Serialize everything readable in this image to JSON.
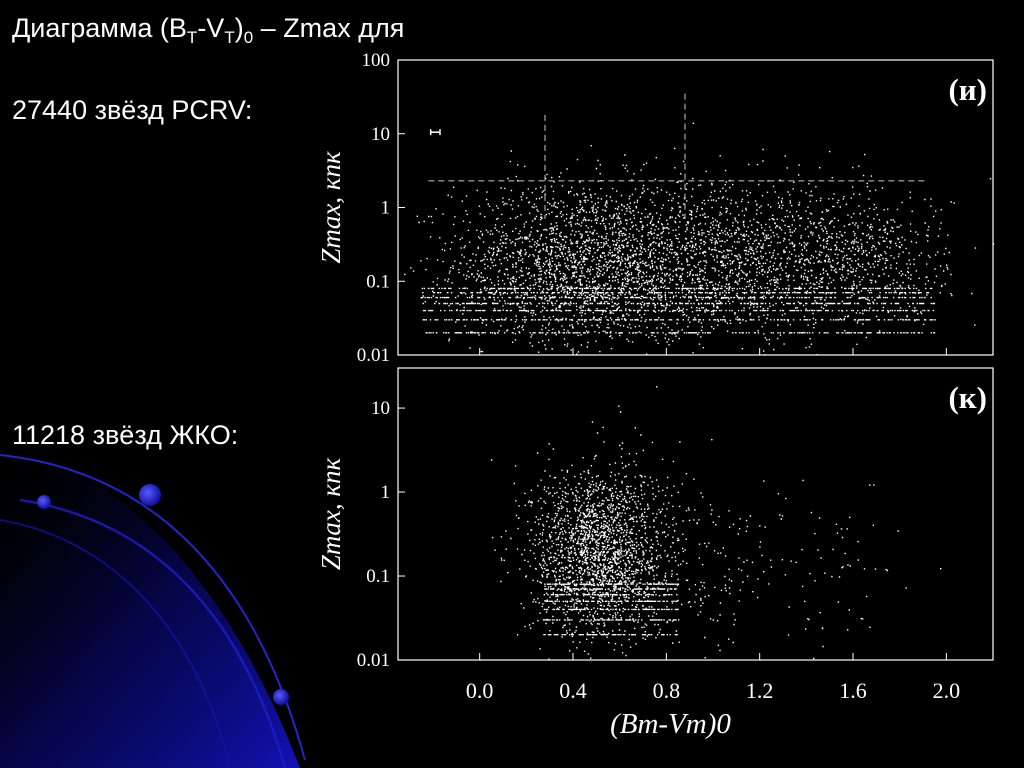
{
  "slide": {
    "title_prefix": "Диаграмма (B",
    "title_sub1": "T",
    "title_mid": "-V",
    "title_sub2": "T",
    "title_close": ")",
    "title_sub3": "0",
    "title_suffix": " – Zmax для",
    "label_top": "27440 звёзд PCRV:",
    "label_bottom": "11218 звёзд ЖКО:",
    "background_color": "#000000",
    "accent_color": "#1a1ad6"
  },
  "chart_data": [
    {
      "type": "scatter",
      "panel_label": "(и)",
      "title": "",
      "xlabel": "(Bт-Vт)0",
      "ylabel": "Zmax, кпк",
      "y_scale": "log",
      "xlim": [
        -0.35,
        2.2
      ],
      "ylim": [
        0.01,
        100
      ],
      "x_ticks": [
        "0.0",
        "0.4",
        "0.8",
        "1.2",
        "1.6",
        "2.0"
      ],
      "y_ticks": [
        "100",
        "10",
        "1",
        "0.1",
        "0.01"
      ],
      "x_tick_values": [
        0.0,
        0.4,
        0.8,
        1.2,
        1.6,
        2.0
      ],
      "y_tick_values": [
        100,
        10,
        1,
        0.1,
        0.01
      ],
      "grid": false,
      "reference_lines": {
        "horizontal_y": 2.3,
        "horizontal_x_range": [
          -0.22,
          1.91
        ],
        "vertical_x": [
          0.28,
          0.88
        ]
      },
      "error_bar": {
        "x": -0.19,
        "y": 10.5,
        "half_width": 0.02
      },
      "point_density": [
        {
          "x": 0.45,
          "y": 0.18,
          "x_spread": 0.28,
          "y_log_spread": 0.55,
          "weight": 0.55
        },
        {
          "x": 1.1,
          "y": 0.2,
          "x_spread": 0.3,
          "y_log_spread": 0.5,
          "weight": 0.32
        },
        {
          "x": 1.65,
          "y": 0.22,
          "x_spread": 0.18,
          "y_log_spread": 0.45,
          "weight": 0.13
        }
      ],
      "point_color": "#ffffff"
    },
    {
      "type": "scatter",
      "panel_label": "(к)",
      "title": "",
      "xlabel": "(Bт-Vт)0",
      "ylabel": "Zmax, кпк",
      "y_scale": "log",
      "xlim": [
        -0.35,
        2.2
      ],
      "ylim": [
        0.01,
        30
      ],
      "x_ticks": [
        "0.0",
        "0.4",
        "0.8",
        "1.2",
        "1.6",
        "2.0"
      ],
      "y_ticks": [
        "10",
        "1",
        "0.1",
        "0.01"
      ],
      "x_tick_values": [
        0.0,
        0.4,
        0.8,
        1.2,
        1.6,
        2.0
      ],
      "y_tick_values": [
        10,
        1,
        0.1,
        0.01
      ],
      "grid": false,
      "point_density": [
        {
          "x": 0.5,
          "y": 0.2,
          "x_spread": 0.14,
          "y_log_spread": 0.5,
          "weight": 0.85
        },
        {
          "x": 0.85,
          "y": 0.15,
          "x_spread": 0.22,
          "y_log_spread": 0.55,
          "weight": 0.12
        },
        {
          "x": 1.45,
          "y": 0.15,
          "x_spread": 0.2,
          "y_log_spread": 0.5,
          "weight": 0.03
        }
      ],
      "point_color": "#ffffff"
    }
  ]
}
